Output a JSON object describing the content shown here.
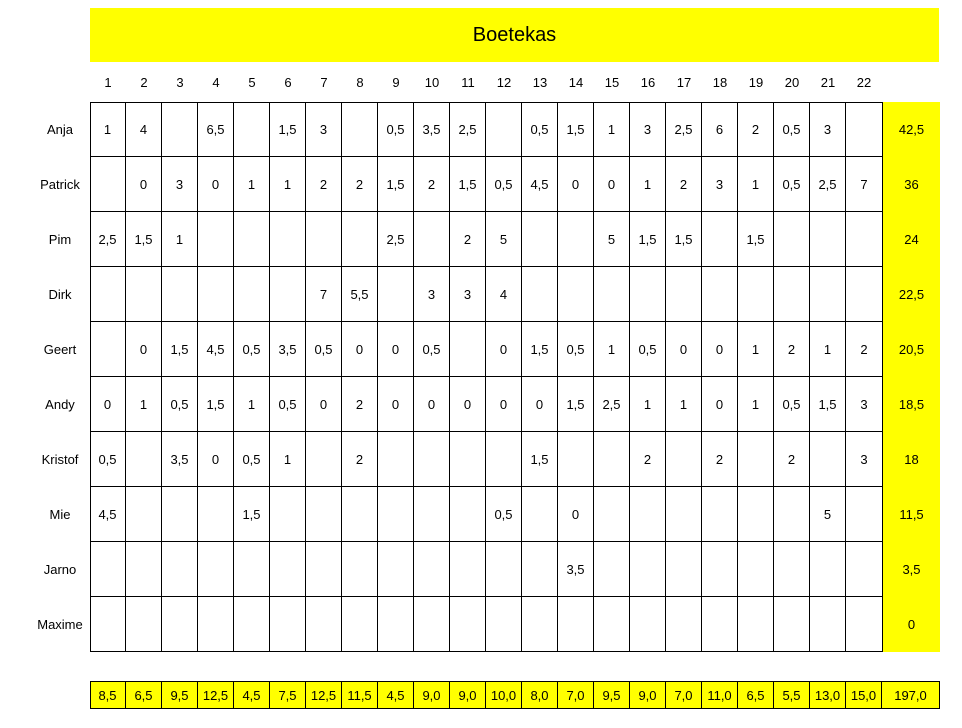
{
  "title": "Boetekas",
  "columns": [
    "1",
    "2",
    "3",
    "4",
    "5",
    "6",
    "7",
    "8",
    "9",
    "10",
    "11",
    "12",
    "13",
    "14",
    "15",
    "16",
    "17",
    "18",
    "19",
    "20",
    "21",
    "22"
  ],
  "rows": [
    {
      "name": "Anja",
      "values": [
        "1",
        "4",
        "",
        "6,5",
        "",
        "1,5",
        "3",
        "",
        "0,5",
        "3,5",
        "2,5",
        "",
        "0,5",
        "1,5",
        "1",
        "3",
        "2,5",
        "6",
        "2",
        "0,5",
        "3",
        ""
      ],
      "total": "42,5"
    },
    {
      "name": "Patrick",
      "values": [
        "",
        "0",
        "3",
        "0",
        "1",
        "1",
        "2",
        "2",
        "1,5",
        "2",
        "1,5",
        "0,5",
        "4,5",
        "0",
        "0",
        "1",
        "2",
        "3",
        "1",
        "0,5",
        "2,5",
        "7"
      ],
      "total": "36"
    },
    {
      "name": "Pim",
      "values": [
        "2,5",
        "1,5",
        "1",
        "",
        "",
        "",
        "",
        "",
        "2,5",
        "",
        "2",
        "5",
        "",
        "",
        "5",
        "1,5",
        "1,5",
        "",
        "1,5",
        "",
        "",
        ""
      ],
      "total": "24"
    },
    {
      "name": "Dirk",
      "values": [
        "",
        "",
        "",
        "",
        "",
        "",
        "7",
        "5,5",
        "",
        "3",
        "3",
        "4",
        "",
        "",
        "",
        "",
        "",
        "",
        "",
        "",
        "",
        ""
      ],
      "total": "22,5"
    },
    {
      "name": "Geert",
      "values": [
        "",
        "0",
        "1,5",
        "4,5",
        "0,5",
        "3,5",
        "0,5",
        "0",
        "0",
        "0,5",
        "",
        "0",
        "1,5",
        "0,5",
        "1",
        "0,5",
        "0",
        "0",
        "1",
        "2",
        "1",
        "2"
      ],
      "total": "20,5"
    },
    {
      "name": "Andy",
      "values": [
        "0",
        "1",
        "0,5",
        "1,5",
        "1",
        "0,5",
        "0",
        "2",
        "0",
        "0",
        "0",
        "0",
        "0",
        "1,5",
        "2,5",
        "1",
        "1",
        "0",
        "1",
        "0,5",
        "1,5",
        "3"
      ],
      "total": "18,5"
    },
    {
      "name": "Kristof",
      "values": [
        "0,5",
        "",
        "3,5",
        "0",
        "0,5",
        "1",
        "",
        "2",
        "",
        "",
        "",
        "",
        "1,5",
        "",
        "",
        "2",
        "",
        "2",
        "",
        "2",
        "",
        "3"
      ],
      "total": "18"
    },
    {
      "name": "Mie",
      "values": [
        "4,5",
        "",
        "",
        "",
        "1,5",
        "",
        "",
        "",
        "",
        "",
        "",
        "0,5",
        "",
        "0",
        "",
        "",
        "",
        "",
        "",
        "",
        "5",
        ""
      ],
      "total": "11,5"
    },
    {
      "name": "Jarno",
      "values": [
        "",
        "",
        "",
        "",
        "",
        "",
        "",
        "",
        "",
        "",
        "",
        "",
        "",
        "3,5",
        "",
        "",
        "",
        "",
        "",
        "",
        "",
        ""
      ],
      "total": "3,5"
    },
    {
      "name": "Maxime",
      "values": [
        "",
        "",
        "",
        "",
        "",
        "",
        "",
        "",
        "",
        "",
        "",
        "",
        "",
        "",
        "",
        "",
        "",
        "",
        "",
        "",
        "",
        ""
      ],
      "total": "0"
    }
  ],
  "column_totals": [
    "8,5",
    "6,5",
    "9,5",
    "12,5",
    "4,5",
    "7,5",
    "12,5",
    "11,5",
    "4,5",
    "9,0",
    "9,0",
    "10,0",
    "8,0",
    "7,0",
    "9,5",
    "9,0",
    "7,0",
    "11,0",
    "6,5",
    "5,5",
    "13,0",
    "15,0"
  ],
  "grand_total": "197,0",
  "colors": {
    "highlight": "#ffff00",
    "grid": "#000000"
  }
}
